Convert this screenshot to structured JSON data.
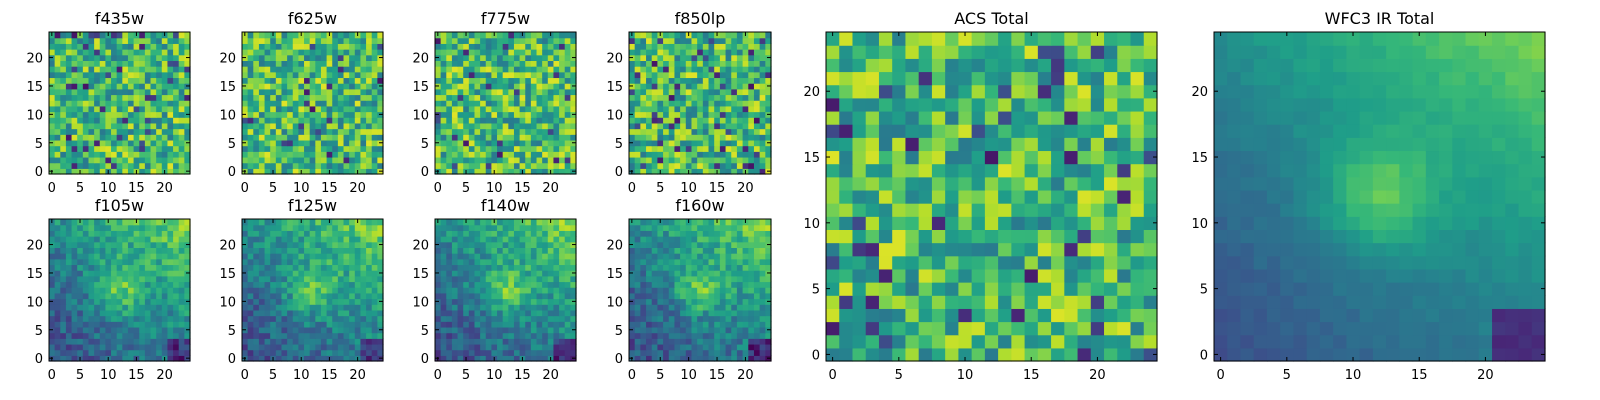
{
  "colormap": "viridis",
  "chart_data": [
    {
      "type": "heatmap",
      "title": "f435w",
      "xlim": [
        0,
        25
      ],
      "ylim": [
        0,
        25
      ],
      "xticks": [
        0,
        5,
        10,
        15,
        20
      ],
      "yticks": [
        0,
        5,
        10,
        15,
        20
      ],
      "pattern": "noise",
      "grid_size": 25
    },
    {
      "type": "heatmap",
      "title": "f625w",
      "xlim": [
        0,
        25
      ],
      "ylim": [
        0,
        25
      ],
      "xticks": [
        0,
        5,
        10,
        15,
        20
      ],
      "yticks": [
        0,
        5,
        10,
        15,
        20
      ],
      "pattern": "noise",
      "grid_size": 25
    },
    {
      "type": "heatmap",
      "title": "f775w",
      "xlim": [
        0,
        25
      ],
      "ylim": [
        0,
        25
      ],
      "xticks": [
        0,
        5,
        10,
        15,
        20
      ],
      "yticks": [
        0,
        5,
        10,
        15,
        20
      ],
      "pattern": "noise",
      "grid_size": 25
    },
    {
      "type": "heatmap",
      "title": "f850lp",
      "xlim": [
        0,
        25
      ],
      "ylim": [
        0,
        25
      ],
      "xticks": [
        0,
        5,
        10,
        15,
        20
      ],
      "yticks": [
        0,
        5,
        10,
        15,
        20
      ],
      "pattern": "noise",
      "grid_size": 25
    },
    {
      "type": "heatmap",
      "title": "ACS Total",
      "xlim": [
        0,
        25
      ],
      "ylim": [
        0,
        25
      ],
      "xticks": [
        0,
        5,
        10,
        15,
        20
      ],
      "yticks": [
        0,
        5,
        10,
        15,
        20
      ],
      "pattern": "noise",
      "grid_size": 25
    },
    {
      "type": "heatmap",
      "title": "WFC3 IR Total",
      "xlim": [
        0,
        25
      ],
      "ylim": [
        0,
        25
      ],
      "xticks": [
        0,
        5,
        10,
        15,
        20
      ],
      "yticks": [
        0,
        5,
        10,
        15,
        20
      ],
      "pattern": "smooth-gradient-bright-top-right",
      "grid_size": 25
    },
    {
      "type": "heatmap",
      "title": "f105w",
      "xlim": [
        0,
        25
      ],
      "ylim": [
        0,
        25
      ],
      "xticks": [
        0,
        5,
        10,
        15,
        20
      ],
      "yticks": [
        0,
        5,
        10,
        15,
        20
      ],
      "pattern": "gradient-bright-top-right",
      "grid_size": 25
    },
    {
      "type": "heatmap",
      "title": "f125w",
      "xlim": [
        0,
        25
      ],
      "ylim": [
        0,
        25
      ],
      "xticks": [
        0,
        5,
        10,
        15,
        20
      ],
      "yticks": [
        0,
        5,
        10,
        15,
        20
      ],
      "pattern": "gradient-bright-top-right",
      "grid_size": 25
    },
    {
      "type": "heatmap",
      "title": "f140w",
      "xlim": [
        0,
        25
      ],
      "ylim": [
        0,
        25
      ],
      "xticks": [
        0,
        5,
        10,
        15,
        20
      ],
      "yticks": [
        0,
        5,
        10,
        15,
        20
      ],
      "pattern": "gradient-bright-top-right",
      "grid_size": 25
    },
    {
      "type": "heatmap",
      "title": "f160w",
      "xlim": [
        0,
        25
      ],
      "ylim": [
        0,
        25
      ],
      "xticks": [
        0,
        5,
        10,
        15,
        20
      ],
      "yticks": [
        0,
        5,
        10,
        15,
        20
      ],
      "pattern": "gradient-bright-top-right",
      "grid_size": 25
    }
  ]
}
